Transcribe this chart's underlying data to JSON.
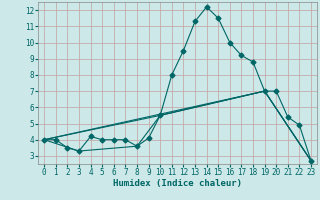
{
  "xlabel": "Humidex (Indice chaleur)",
  "xlim": [
    -0.5,
    23.5
  ],
  "ylim": [
    2.5,
    12.5
  ],
  "xticks": [
    0,
    1,
    2,
    3,
    4,
    5,
    6,
    7,
    8,
    9,
    10,
    11,
    12,
    13,
    14,
    15,
    16,
    17,
    18,
    19,
    20,
    21,
    22,
    23
  ],
  "yticks": [
    3,
    4,
    5,
    6,
    7,
    8,
    9,
    10,
    11,
    12
  ],
  "background_color": "#cce8e8",
  "grid_color": "#c4a0a0",
  "line_color": "#006666",
  "line1_x": [
    0,
    1,
    2,
    3,
    4,
    5,
    6,
    7,
    8,
    9,
    10,
    11,
    12,
    13,
    14,
    15,
    16,
    17,
    18,
    19,
    20,
    21,
    22,
    23
  ],
  "line1_y": [
    4.0,
    4.0,
    3.5,
    3.3,
    4.2,
    4.0,
    4.0,
    4.0,
    3.6,
    4.1,
    5.5,
    8.0,
    9.5,
    11.3,
    12.2,
    11.5,
    10.0,
    9.2,
    8.8,
    7.0,
    7.0,
    5.4,
    4.9,
    2.7
  ],
  "line2_x": [
    0,
    19,
    23
  ],
  "line2_y": [
    4.0,
    7.0,
    2.7
  ],
  "line3_x": [
    0,
    10,
    19,
    23
  ],
  "line3_y": [
    4.0,
    5.5,
    7.0,
    2.7
  ],
  "line4_x": [
    0,
    3,
    8,
    10,
    19,
    23
  ],
  "line4_y": [
    4.0,
    3.3,
    3.6,
    5.5,
    7.0,
    2.7
  ],
  "marker": "D",
  "markersize": 2.5,
  "linewidth": 0.8,
  "tick_fontsize": 5.5,
  "xlabel_fontsize": 6.5
}
